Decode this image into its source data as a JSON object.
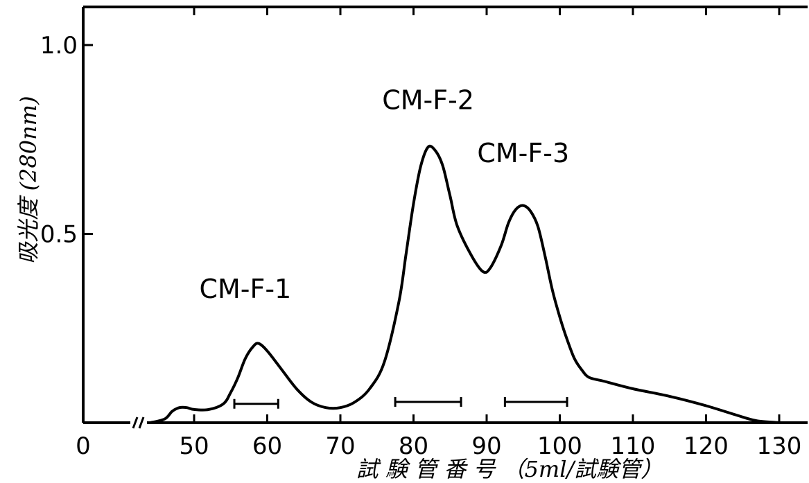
{
  "chart_data": {
    "type": "line",
    "title": "",
    "xlabel": "試 験 管 番 号 （5ml/試験管）",
    "ylabel": "吸光度 (280nm)",
    "xlim": [
      0,
      135
    ],
    "ylim": [
      0,
      1.1
    ],
    "x_axis_break": true,
    "x_ticks": [
      0,
      50,
      60,
      70,
      80,
      90,
      100,
      110,
      120,
      130
    ],
    "x_tick_labels": [
      "0",
      "50",
      "60",
      "70",
      "80",
      "90",
      "100",
      "110",
      "120",
      "130"
    ],
    "y_ticks": [
      0.5,
      1.0
    ],
    "y_tick_labels": [
      "0.5",
      "1.0"
    ],
    "grid": false,
    "series": [
      {
        "points": [
          [
            44,
            0.0
          ],
          [
            46,
            0.01
          ],
          [
            47,
            0.03
          ],
          [
            48,
            0.04
          ],
          [
            49,
            0.04
          ],
          [
            50,
            0.035
          ],
          [
            52,
            0.035
          ],
          [
            54,
            0.05
          ],
          [
            55,
            0.08
          ],
          [
            56,
            0.12
          ],
          [
            57,
            0.17
          ],
          [
            58,
            0.2
          ],
          [
            58.8,
            0.21
          ],
          [
            60,
            0.19
          ],
          [
            62,
            0.14
          ],
          [
            64,
            0.09
          ],
          [
            66,
            0.055
          ],
          [
            68,
            0.04
          ],
          [
            70,
            0.04
          ],
          [
            72,
            0.055
          ],
          [
            74,
            0.09
          ],
          [
            76,
            0.16
          ],
          [
            78,
            0.32
          ],
          [
            79,
            0.45
          ],
          [
            80,
            0.58
          ],
          [
            81,
            0.68
          ],
          [
            82,
            0.73
          ],
          [
            83,
            0.72
          ],
          [
            84,
            0.68
          ],
          [
            85,
            0.6
          ],
          [
            86,
            0.52
          ],
          [
            88,
            0.44
          ],
          [
            89.5,
            0.4
          ],
          [
            90.5,
            0.41
          ],
          [
            92,
            0.47
          ],
          [
            93,
            0.53
          ],
          [
            94,
            0.565
          ],
          [
            95,
            0.575
          ],
          [
            96,
            0.56
          ],
          [
            97,
            0.52
          ],
          [
            98,
            0.44
          ],
          [
            99,
            0.35
          ],
          [
            100,
            0.28
          ],
          [
            101,
            0.22
          ],
          [
            102,
            0.17
          ],
          [
            103,
            0.14
          ],
          [
            104,
            0.12
          ],
          [
            106,
            0.11
          ],
          [
            110,
            0.09
          ],
          [
            115,
            0.07
          ],
          [
            120,
            0.045
          ],
          [
            125,
            0.015
          ],
          [
            127,
            0.005
          ],
          [
            130,
            0.0
          ]
        ]
      }
    ],
    "annotations": [
      {
        "text": "CM-F-1",
        "x": 57,
        "y": 0.33
      },
      {
        "text": "CM-F-2",
        "x": 82,
        "y": 0.83
      },
      {
        "text": "CM-F-3",
        "x": 95,
        "y": 0.69
      }
    ],
    "fraction_bars": [
      {
        "start": 55.5,
        "end": 61.5,
        "y": 0.05
      },
      {
        "start": 77.5,
        "end": 86.5,
        "y": 0.055
      },
      {
        "start": 92.5,
        "end": 101,
        "y": 0.055
      }
    ]
  }
}
